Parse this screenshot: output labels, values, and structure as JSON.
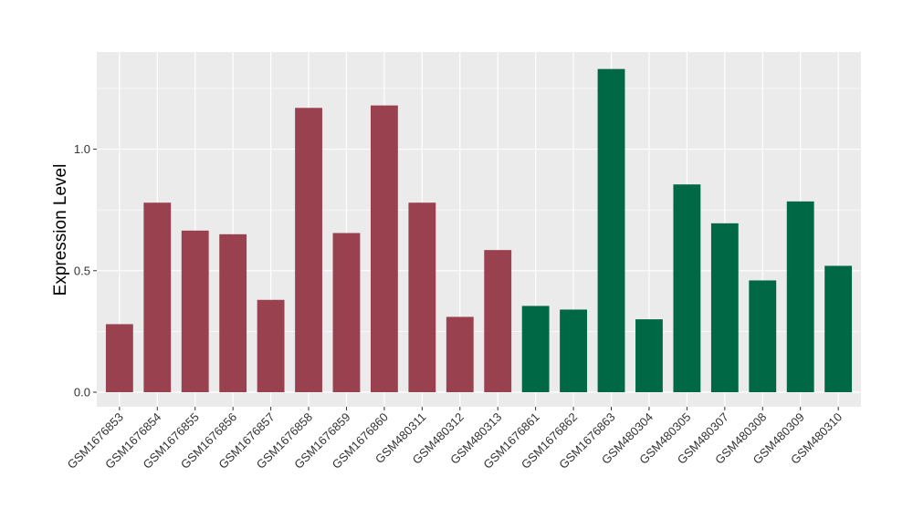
{
  "chart_data": {
    "type": "bar",
    "title": "",
    "xlabel": "",
    "ylabel": "Expression Level",
    "ylim": [
      -0.06,
      1.4
    ],
    "yticks": [
      0.0,
      0.5,
      1.0
    ],
    "ytick_labels": [
      "0.0",
      "0.5",
      "1.0"
    ],
    "grid": true,
    "legend": "none",
    "colors": {
      "group1": "#9a4150",
      "group2": "#006845",
      "panel": "#ebebeb",
      "grid": "#ffffff"
    },
    "categories": [
      "GSM1676853",
      "GSM1676854",
      "GSM1676855",
      "GSM1676856",
      "GSM1676857",
      "GSM1676858",
      "GSM1676859",
      "GSM1676860",
      "GSM480311",
      "GSM480312",
      "GSM480313",
      "GSM1676861",
      "GSM1676862",
      "GSM1676863",
      "GSM480304",
      "GSM480305",
      "GSM480307",
      "GSM480308",
      "GSM480309",
      "GSM480310"
    ],
    "values": [
      0.28,
      0.78,
      0.665,
      0.65,
      0.38,
      1.17,
      0.655,
      1.18,
      0.78,
      0.31,
      0.585,
      0.355,
      0.34,
      1.33,
      0.3,
      0.855,
      0.695,
      0.46,
      0.785,
      0.52
    ],
    "groups": [
      1,
      1,
      1,
      1,
      1,
      1,
      1,
      1,
      1,
      1,
      1,
      2,
      2,
      2,
      2,
      2,
      2,
      2,
      2,
      2
    ]
  }
}
